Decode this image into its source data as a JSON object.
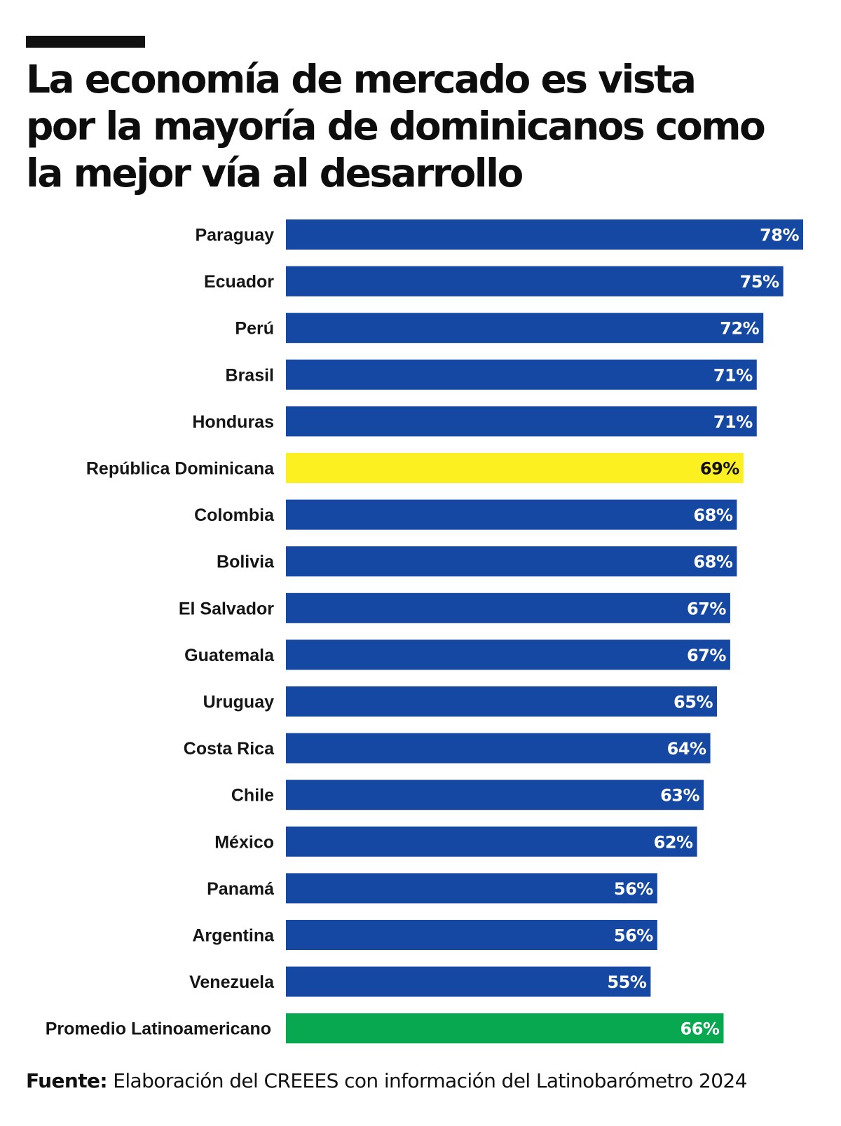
{
  "title_lines": [
    "La economía de mercado es vista",
    "por la mayoría de dominicanos como",
    "la mejor vía al desarrollo"
  ],
  "source": {
    "label": "Fuente:",
    "text": "Elaboración del CREEES con información del Latinobarómetro 2024"
  },
  "colors": {
    "default_bar": "#1448a3",
    "highlight_bar": "#fdf021",
    "average_bar": "#08a851",
    "label_on_dark": "#ffffff",
    "label_on_highlight": "#111111"
  },
  "chart_data": {
    "type": "bar",
    "orientation": "horizontal",
    "categories": [
      "Paraguay",
      "Ecuador",
      "Perú",
      "Brasil",
      "Honduras",
      "República Dominicana",
      "Colombia",
      "Bolivia",
      "El Salvador",
      "Guatemala",
      "Uruguay",
      "Costa Rica",
      "Chile",
      "México",
      "Panamá",
      "Argentina",
      "Venezuela",
      "Promedio Latinoamericano"
    ],
    "values": [
      78,
      75,
      72,
      71,
      71,
      69,
      68,
      68,
      67,
      67,
      65,
      64,
      63,
      62,
      56,
      56,
      55,
      66
    ],
    "value_labels": [
      "78%",
      "75%",
      "72%",
      "71%",
      "71%",
      "69%",
      "68%",
      "68%",
      "67%",
      "67%",
      "65%",
      "64%",
      "63%",
      "62%",
      "56%",
      "56%",
      "55%",
      "66%"
    ],
    "highlight": "República Dominicana",
    "average": "Promedio Latinoamericano",
    "unit": "%",
    "xlim": [
      0,
      78
    ],
    "grid": false,
    "legend": "none"
  }
}
